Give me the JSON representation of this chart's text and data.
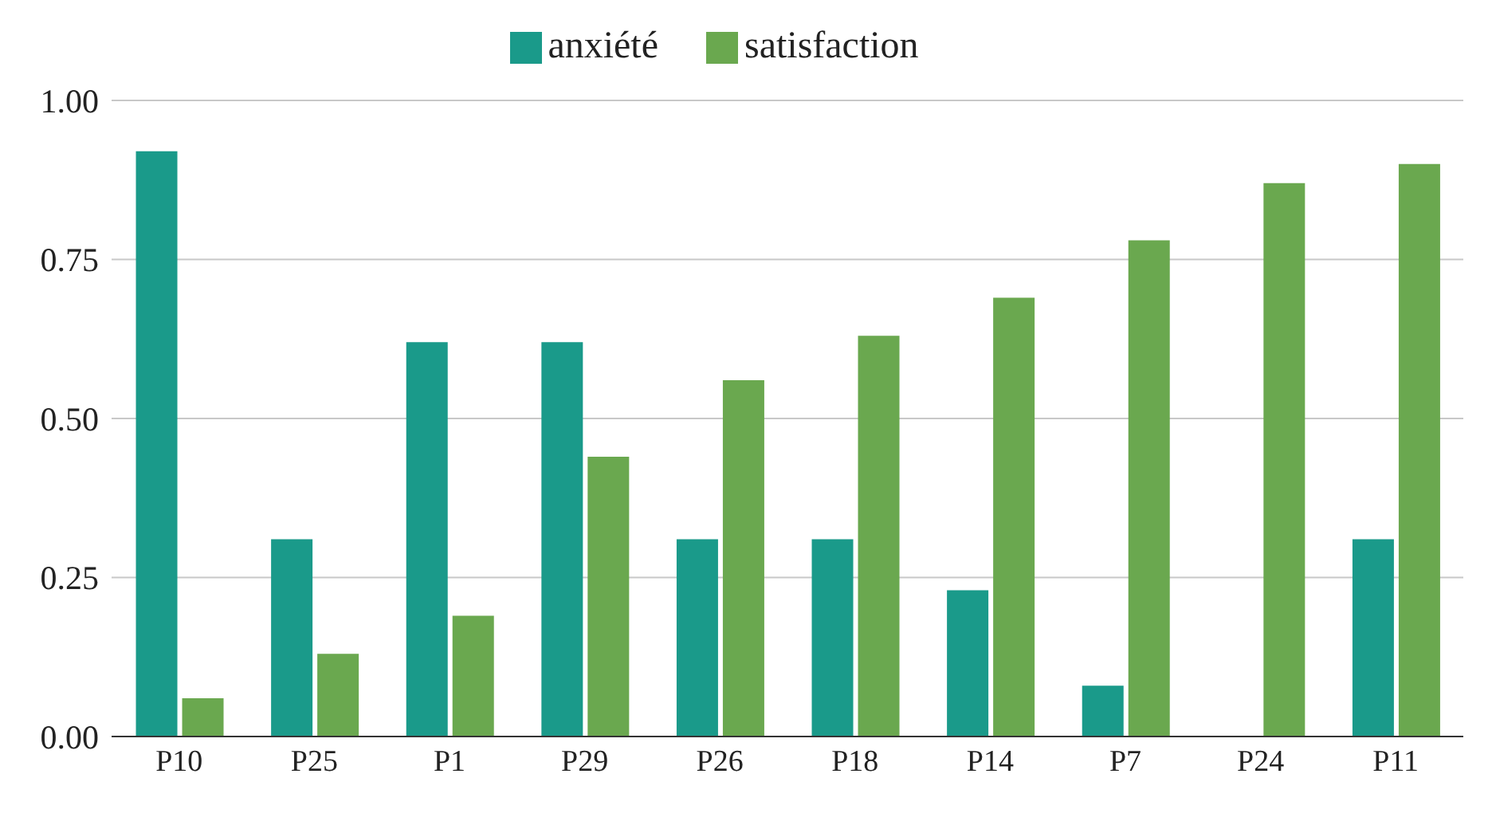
{
  "chart_data": {
    "type": "bar",
    "categories": [
      "P10",
      "P25",
      "P1",
      "P29",
      "P26",
      "P18",
      "P14",
      "P7",
      "P24",
      "P11"
    ],
    "series": [
      {
        "name": "anxiété",
        "color": "#1a9a8a",
        "values": [
          0.92,
          0.31,
          0.62,
          0.62,
          0.31,
          0.31,
          0.23,
          0.08,
          0,
          0.31
        ]
      },
      {
        "name": "satisfaction",
        "color": "#6aa84f",
        "values": [
          0.06,
          0.13,
          0.19,
          0.44,
          0.56,
          0.63,
          0.69,
          0.78,
          0.87,
          0.9
        ]
      }
    ],
    "ylim": [
      0,
      1
    ],
    "yticks": [
      {
        "value": 0,
        "label": "0.00"
      },
      {
        "value": 0.25,
        "label": "0.25"
      },
      {
        "value": 0.5,
        "label": "0.50"
      },
      {
        "value": 0.75,
        "label": "0.75"
      },
      {
        "value": 1,
        "label": "1.00"
      }
    ],
    "grid": "y",
    "legend": "top"
  }
}
